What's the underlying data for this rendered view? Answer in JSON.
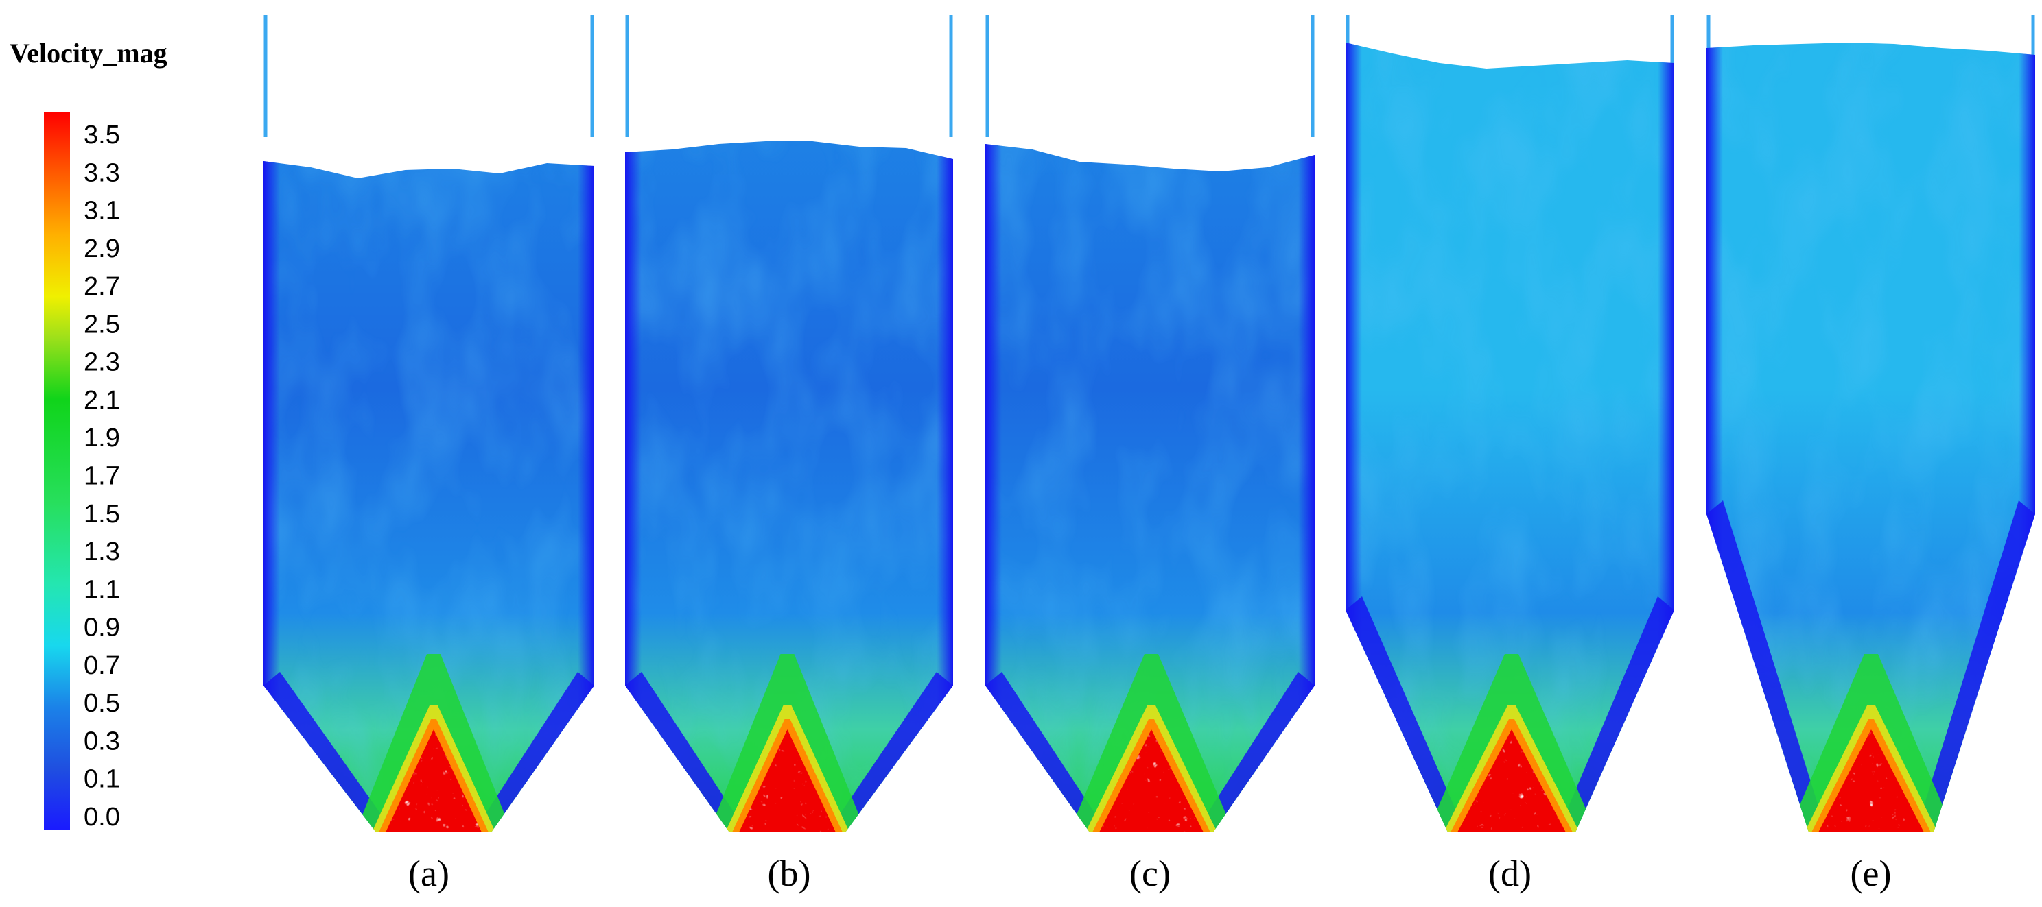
{
  "legend": {
    "title": "Velocity_mag",
    "ticks": [
      "3.5",
      "3.3",
      "3.1",
      "2.9",
      "2.7",
      "2.5",
      "2.3",
      "2.1",
      "1.9",
      "1.7",
      "1.5",
      "1.3",
      "1.1",
      "0.9",
      "0.7",
      "0.5",
      "0.3",
      "0.1",
      "0.0"
    ],
    "stops": [
      {
        "v": 0.0,
        "color": "#1a1aff"
      },
      {
        "v": 0.3,
        "color": "#1f4fe0"
      },
      {
        "v": 0.6,
        "color": "#1b82e8"
      },
      {
        "v": 0.9,
        "color": "#18d8ee"
      },
      {
        "v": 1.2,
        "color": "#24e6b0"
      },
      {
        "v": 1.6,
        "color": "#27df5c"
      },
      {
        "v": 2.1,
        "color": "#10d41a"
      },
      {
        "v": 2.4,
        "color": "#9ee01a"
      },
      {
        "v": 2.6,
        "color": "#f0f000"
      },
      {
        "v": 2.9,
        "color": "#ffb000"
      },
      {
        "v": 3.2,
        "color": "#ff5a00"
      },
      {
        "v": 3.5,
        "color": "#ff0000"
      }
    ]
  },
  "colors": {
    "wall": "#1616f0",
    "bulk_dark": "#1b6ae0",
    "bulk_mid": "#1f8ce8",
    "bulk_light": "#26b8ee",
    "mixing": "#3fd0a6",
    "jet_green": "#20d43c",
    "jet_yellow": "#e8e21a",
    "jet_orange": "#ff8c00",
    "jet_core": "#f00000"
  },
  "panels": [
    {
      "label": "(a)"
    },
    {
      "label": "(b)"
    },
    {
      "label": "(c)"
    },
    {
      "label": "(d)"
    },
    {
      "label": "(e)"
    }
  ]
}
